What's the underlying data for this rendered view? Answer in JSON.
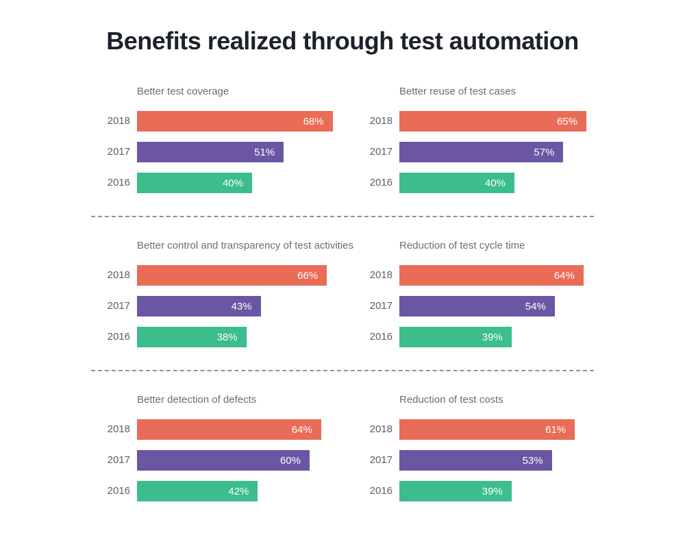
{
  "page": {
    "title": "Benefits realized through test automation"
  },
  "styles": {
    "background": "#FFFFFF",
    "title_color": "#1C212B",
    "chart_title_color": "#666E79",
    "category_label_color": "#596169",
    "value_label_color": "#FFFFFF",
    "separator_color": "#8F8F8F",
    "category_colors": {
      "2018": "#E96C57",
      "2017": "#6B56A3",
      "2016": "#3CBD8C"
    }
  },
  "chart_data": [
    {
      "type": "bar",
      "orientation": "horizontal",
      "title": "Better test coverage",
      "categories": [
        "2018",
        "2017",
        "2016"
      ],
      "values": [
        68,
        51,
        40
      ],
      "value_labels": [
        "68%",
        "51%",
        "40%"
      ],
      "unit": "%",
      "xlim": [
        0,
        100
      ],
      "grid": false,
      "legend": "none"
    },
    {
      "type": "bar",
      "orientation": "horizontal",
      "title": "Better reuse of test cases",
      "categories": [
        "2018",
        "2017",
        "2016"
      ],
      "values": [
        65,
        57,
        40
      ],
      "value_labels": [
        "65%",
        "57%",
        "40%"
      ],
      "unit": "%",
      "xlim": [
        0,
        100
      ],
      "grid": false,
      "legend": "none"
    },
    {
      "type": "bar",
      "orientation": "horizontal",
      "title": "Better control and transparency of test activities",
      "categories": [
        "2018",
        "2017",
        "2016"
      ],
      "values": [
        66,
        43,
        38
      ],
      "value_labels": [
        "66%",
        "43%",
        "38%"
      ],
      "unit": "%",
      "xlim": [
        0,
        100
      ],
      "grid": false,
      "legend": "none"
    },
    {
      "type": "bar",
      "orientation": "horizontal",
      "title": "Reduction of test cycle time",
      "categories": [
        "2018",
        "2017",
        "2016"
      ],
      "values": [
        64,
        54,
        39
      ],
      "value_labels": [
        "64%",
        "54%",
        "39%"
      ],
      "unit": "%",
      "xlim": [
        0,
        100
      ],
      "grid": false,
      "legend": "none"
    },
    {
      "type": "bar",
      "orientation": "horizontal",
      "title": "Better detection of defects",
      "categories": [
        "2018",
        "2017",
        "2016"
      ],
      "values": [
        64,
        60,
        42
      ],
      "value_labels": [
        "64%",
        "60%",
        "42%"
      ],
      "unit": "%",
      "xlim": [
        0,
        100
      ],
      "grid": false,
      "legend": "none"
    },
    {
      "type": "bar",
      "orientation": "horizontal",
      "title": "Reduction of test costs",
      "categories": [
        "2018",
        "2017",
        "2016"
      ],
      "values": [
        61,
        53,
        39
      ],
      "value_labels": [
        "61%",
        "53%",
        "39%"
      ],
      "unit": "%",
      "xlim": [
        0,
        100
      ],
      "grid": false,
      "legend": "none"
    }
  ]
}
